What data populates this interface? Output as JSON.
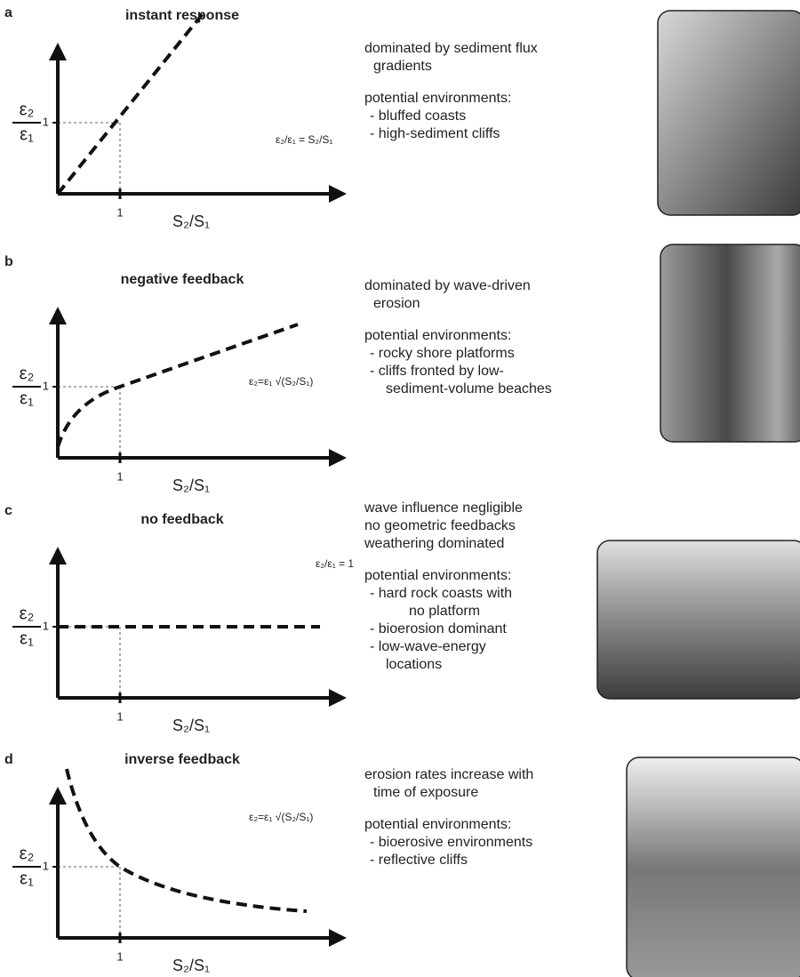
{
  "panels": [
    {
      "letter": "a",
      "title": "instant response",
      "y_label_num": "ε₂",
      "y_label_den": "ε₁",
      "y_tick": "1",
      "x_tick": "1",
      "x_label": "S₂/S₁",
      "equation": "ε₂/ε₁ = S₂/S₁",
      "description": [
        "dominated by sediment flux",
        "gradients"
      ],
      "environments_title": "potential environments:",
      "environments": [
        "- bluffed coasts",
        "- high-sediment cliffs"
      ]
    },
    {
      "letter": "b",
      "title": "negative feedback",
      "y_label_num": "ε₂",
      "y_label_den": "ε₁",
      "y_tick": "1",
      "x_tick": "1",
      "x_label": "S₂/S₁",
      "equation": "ε₂=ε₁ √(S₂/S₁)",
      "description": [
        "dominated by wave-driven",
        "erosion"
      ],
      "environments_title": "potential environments:",
      "environments": [
        "- rocky shore platforms",
        "- cliffs fronted by low-",
        "sediment-volume beaches"
      ]
    },
    {
      "letter": "c",
      "title": "no feedback",
      "y_label_num": "ε₂",
      "y_label_den": "ε₁",
      "y_tick": "1",
      "x_tick": "1",
      "x_label": "S₂/S₁",
      "equation": "ε₂/ε₁ = 1",
      "description": [
        "wave influence negligible",
        "no geometric feedbacks",
        "weathering dominated"
      ],
      "environments_title": "potential environments:",
      "environments": [
        "- hard rock coasts with",
        "no platform",
        "- bioerosion dominant",
        "- low-wave-energy",
        "locations"
      ]
    },
    {
      "letter": "d",
      "title": "inverse feedback",
      "y_label_num": "ε₂",
      "y_label_den": "ε₁",
      "y_tick": "1",
      "x_tick": "1",
      "x_label": "S₂/S₁",
      "equation": "ε₂=ε₁ √(S₂/S₁)",
      "description": [
        "erosion rates increase with",
        "time of exposure"
      ],
      "environments_title": "potential environments:",
      "environments": [
        "- bioerosive environments",
        "- reflective cliffs"
      ]
    }
  ]
}
